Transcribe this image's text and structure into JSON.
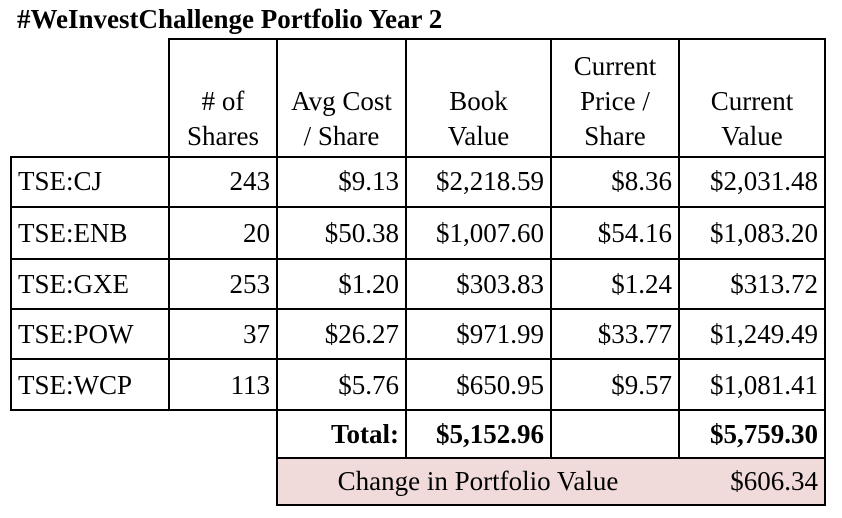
{
  "title": "#WeInvestChallenge Portfolio Year 2",
  "headers": {
    "shares": "# of\nShares",
    "avg_cost": "Avg Cost\n/ Share",
    "book_value": "Book\nValue",
    "current_price": "Current\nPrice /\nShare",
    "current_value": "Current\nValue"
  },
  "rows": [
    {
      "ticker": "TSE:CJ",
      "shares": "243",
      "avg_cost": "$9.13",
      "book_value": "$2,218.59",
      "current_price": "$8.36",
      "current_value": "$2,031.48"
    },
    {
      "ticker": "TSE:ENB",
      "shares": "20",
      "avg_cost": "$50.38",
      "book_value": "$1,007.60",
      "current_price": "$54.16",
      "current_value": "$1,083.20"
    },
    {
      "ticker": "TSE:GXE",
      "shares": "253",
      "avg_cost": "$1.20",
      "book_value": "$303.83",
      "current_price": "$1.24",
      "current_value": "$313.72"
    },
    {
      "ticker": "TSE:POW",
      "shares": "37",
      "avg_cost": "$26.27",
      "book_value": "$971.99",
      "current_price": "$33.77",
      "current_value": "$1,249.49"
    },
    {
      "ticker": "TSE:WCP",
      "shares": "113",
      "avg_cost": "$5.76",
      "book_value": "$650.95",
      "current_price": "$9.57",
      "current_value": "$1,081.41"
    }
  ],
  "totals": {
    "label": "Total:",
    "book_value": "$5,152.96",
    "current_value": "$5,759.30"
  },
  "change": {
    "label": "Change in Portfolio Value",
    "value": "$606.34"
  },
  "colors": {
    "change_row_background": "#f0dada"
  }
}
